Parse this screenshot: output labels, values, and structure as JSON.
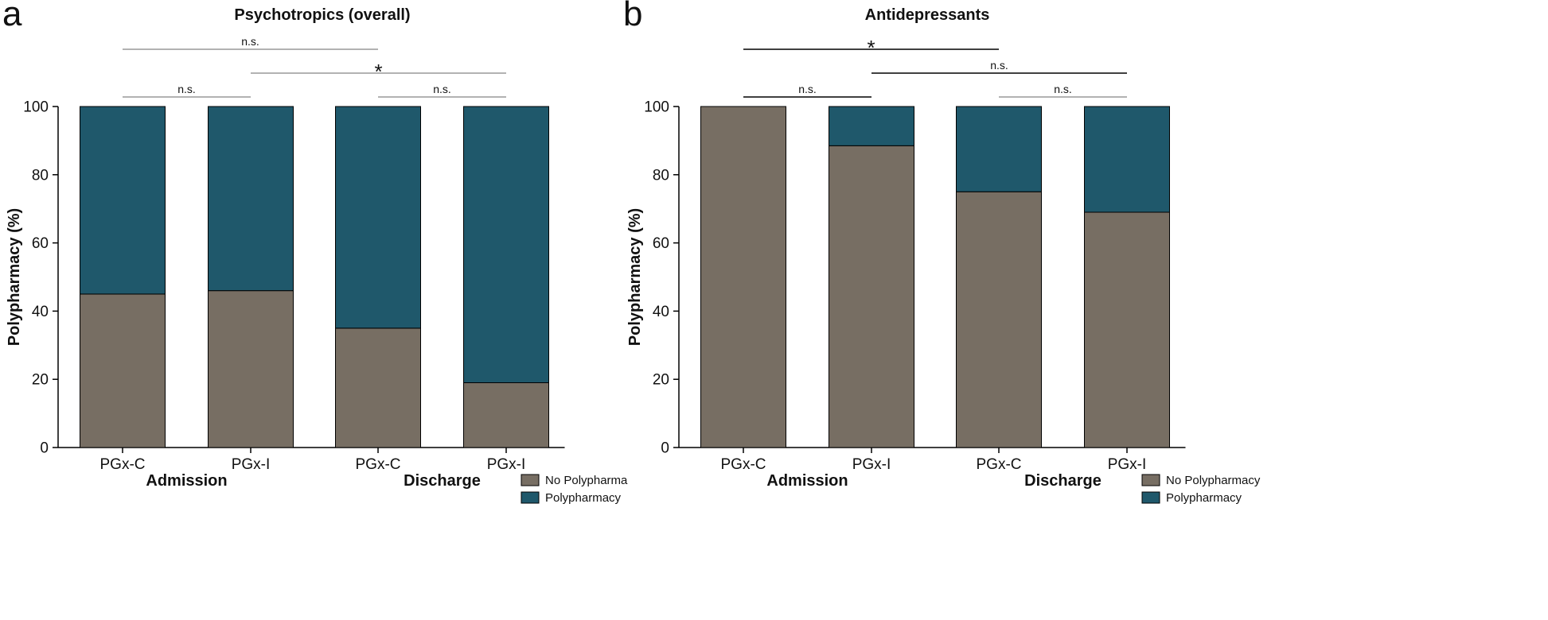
{
  "chart_data": [
    {
      "type": "bar",
      "stacked": true,
      "panel_letter": "a",
      "title": "Psychotropics (overall)",
      "ylabel": "Polypharmacy (%)",
      "ylim": [
        0,
        100
      ],
      "yticks": [
        0,
        20,
        40,
        60,
        80,
        100
      ],
      "categories": [
        "PGx-C",
        "PGx-I",
        "PGx-C",
        "PGx-I"
      ],
      "groups": [
        {
          "label": "Admission",
          "categories": [
            0,
            1
          ]
        },
        {
          "label": "Discharge",
          "categories": [
            2,
            3
          ]
        }
      ],
      "series": [
        {
          "name": "No Polypharma",
          "color": "#776e63",
          "values": [
            45,
            46,
            35,
            19
          ]
        },
        {
          "name": "Polypharmacy",
          "color": "#1f586b",
          "values": [
            55,
            54,
            65,
            81
          ]
        }
      ],
      "legend": {
        "position": "bottom-right"
      },
      "grid": false,
      "significance": [
        {
          "from": 0,
          "to": 2,
          "label": "n.s.",
          "level": 2,
          "strong": false
        },
        {
          "from": 1,
          "to": 3,
          "label": "*",
          "level": 1,
          "strong": false
        },
        {
          "from": 0,
          "to": 1,
          "label": "n.s.",
          "level": 0,
          "strong": false
        },
        {
          "from": 2,
          "to": 3,
          "label": "n.s.",
          "level": 0,
          "strong": false
        }
      ]
    },
    {
      "type": "bar",
      "stacked": true,
      "panel_letter": "b",
      "title": "Antidepressants",
      "ylabel": "Polypharmacy (%)",
      "ylim": [
        0,
        100
      ],
      "yticks": [
        0,
        20,
        40,
        60,
        80,
        100
      ],
      "categories": [
        "PGx-C",
        "PGx-I",
        "PGx-C",
        "PGx-I"
      ],
      "groups": [
        {
          "label": "Admission",
          "categories": [
            0,
            1
          ]
        },
        {
          "label": "Discharge",
          "categories": [
            2,
            3
          ]
        }
      ],
      "series": [
        {
          "name": "No Polypharmacy",
          "color": "#776e63",
          "values": [
            100,
            88.5,
            75,
            69
          ]
        },
        {
          "name": "Polypharmacy",
          "color": "#1f586b",
          "values": [
            0,
            11.5,
            25,
            31
          ]
        }
      ],
      "legend": {
        "position": "bottom-right"
      },
      "grid": false,
      "significance": [
        {
          "from": 0,
          "to": 2,
          "label": "*",
          "level": 2,
          "strong": true
        },
        {
          "from": 1,
          "to": 3,
          "label": "n.s.",
          "level": 1,
          "strong": true
        },
        {
          "from": 0,
          "to": 1,
          "label": "n.s.",
          "level": 0,
          "strong": true
        },
        {
          "from": 2,
          "to": 3,
          "label": "n.s.",
          "level": 0,
          "strong": false
        }
      ]
    }
  ]
}
